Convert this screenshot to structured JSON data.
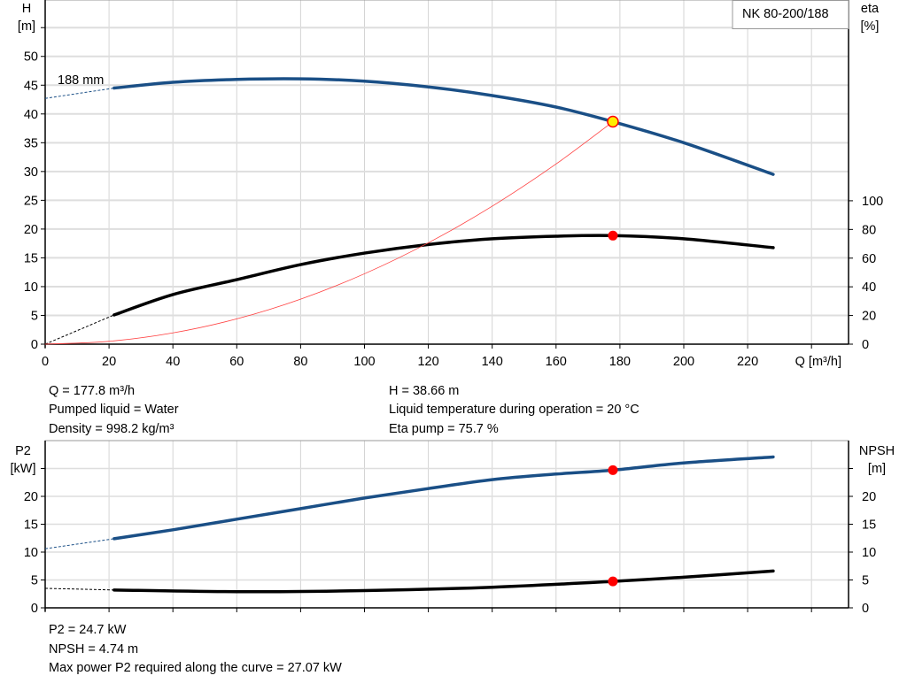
{
  "chart_data": [
    {
      "type": "line",
      "title": "NK 80-200/188",
      "xlabel": "Q [m³/h]",
      "xlim": [
        0,
        251.6
      ],
      "xticks": [
        "0",
        "20",
        "40",
        "60",
        "80",
        "100",
        "120",
        "140",
        "160",
        "180",
        "200",
        "220"
      ],
      "y_left": {
        "label_line1": "H",
        "label_line2": "[m]",
        "ylim": [
          0,
          59.8
        ],
        "ticks": [
          "0",
          "5",
          "10",
          "15",
          "20",
          "25",
          "30",
          "35",
          "40",
          "45",
          "50"
        ]
      },
      "y_right": {
        "label_line1": "eta",
        "label_line2": "[%]",
        "ylim": [
          0,
          240
        ],
        "ticks": [
          "0",
          "20",
          "40",
          "60",
          "80",
          "100"
        ]
      },
      "grid": true,
      "annotations": {
        "impeller": "188 mm"
      },
      "series": [
        {
          "id": "head",
          "axis": "left",
          "color": "#1a4f86",
          "x": [
            21.6,
            40,
            60,
            80,
            100,
            120,
            140,
            160,
            177.8,
            200,
            228
          ],
          "y": [
            44.5,
            45.5,
            46.0,
            46.1,
            45.7,
            44.7,
            43.2,
            41.2,
            38.66,
            35.0,
            29.5
          ],
          "extrapolated": {
            "x": [
              0,
              21.6
            ],
            "y": [
              42.7,
              44.5
            ]
          }
        },
        {
          "id": "efficiency",
          "axis": "right",
          "color": "#000000",
          "x": [
            21.6,
            40,
            60,
            80,
            100,
            120,
            140,
            160,
            177.8,
            200,
            228
          ],
          "y": [
            20.4,
            34.6,
            45.0,
            55.5,
            63.5,
            69.5,
            73.5,
            75.3,
            75.7,
            73.5,
            67.3
          ],
          "extrapolated": {
            "x": [
              0,
              21.6
            ],
            "y": [
              0,
              20.4
            ]
          }
        },
        {
          "id": "system",
          "axis": "left",
          "color": "#ff4040",
          "x": [
            0,
            20,
            40,
            60,
            80,
            100,
            120,
            140,
            160,
            177.8
          ],
          "y": [
            0,
            0.49,
            1.96,
            4.4,
            7.83,
            12.23,
            17.61,
            23.97,
            31.31,
            38.66
          ]
        }
      ],
      "duty_point": {
        "q": 177.8,
        "h": 38.66,
        "eta": 75.7
      }
    },
    {
      "type": "line",
      "xlim": [
        0,
        251.6
      ],
      "y_left": {
        "label_line1": "P2",
        "label_line2": "[kW]",
        "ylim": [
          0,
          30
        ],
        "ticks": [
          "0",
          "5",
          "10",
          "15",
          "20"
        ]
      },
      "y_right": {
        "label_line1": "NPSH",
        "label_line2": "[m]",
        "ylim": [
          0,
          30
        ],
        "ticks": [
          "0",
          "5",
          "10",
          "15",
          "20"
        ]
      },
      "grid": true,
      "series": [
        {
          "id": "p2",
          "axis": "left",
          "color": "#1a4f86",
          "x": [
            21.6,
            40,
            60,
            80,
            100,
            120,
            140,
            160,
            177.8,
            200,
            228
          ],
          "y": [
            12.4,
            14.0,
            15.9,
            17.8,
            19.7,
            21.4,
            23.0,
            24.0,
            24.7,
            26.0,
            27.07
          ],
          "extrapolated": {
            "x": [
              0,
              21.6
            ],
            "y": [
              10.6,
              12.4
            ]
          }
        },
        {
          "id": "npsh",
          "axis": "right",
          "color": "#000000",
          "x": [
            21.6,
            60,
            100,
            140,
            177.8,
            200,
            228
          ],
          "y": [
            3.2,
            2.9,
            3.1,
            3.7,
            4.74,
            5.5,
            6.6
          ],
          "extrapolated": {
            "x": [
              0,
              21.6
            ],
            "y": [
              3.5,
              3.2
            ]
          }
        }
      ],
      "duty_point": {
        "q": 177.8,
        "p2": 24.7,
        "npsh": 4.74
      }
    }
  ],
  "info_top": {
    "q": "Q = 177.8 m³/h",
    "liquid": "Pumped liquid = Water",
    "density": "Density = 998.2 kg/m³",
    "h": "H = 38.66 m",
    "temp": "Liquid temperature during operation = 20 °C",
    "eta": "Eta pump = 75.7 %"
  },
  "info_bottom": {
    "p2": "P2 = 24.7 kW",
    "npsh": "NPSH = 4.74 m",
    "max_power": "Max power P2 required along the curve = 27.07 kW"
  }
}
